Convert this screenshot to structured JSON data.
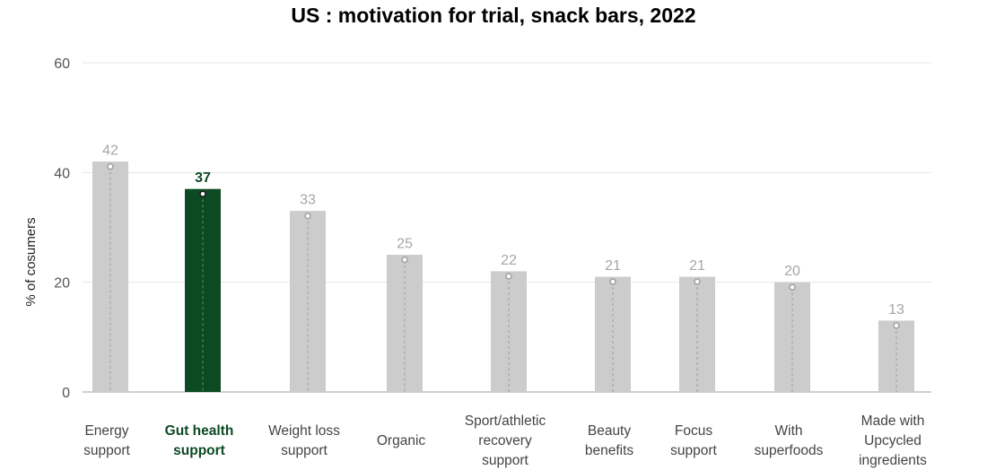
{
  "chart_data": {
    "type": "bar",
    "title": "US : motivation for trial, snack bars, 2022",
    "xlabel": "",
    "ylabel": "% of cosumers",
    "ylim": [
      0,
      60
    ],
    "yticks": [
      0,
      20,
      40,
      60
    ],
    "grid": true,
    "categories": [
      [
        "Energy",
        "support"
      ],
      [
        "Gut health",
        "support"
      ],
      [
        "Weight loss",
        "support"
      ],
      [
        "Organic"
      ],
      [
        "Sport/athletic",
        "recovery",
        "support"
      ],
      [
        "Beauty",
        "benefits"
      ],
      [
        "Focus",
        "support"
      ],
      [
        "With",
        "superfoods"
      ],
      [
        "Made with",
        "Upcycled",
        "ingredients"
      ]
    ],
    "values": [
      42,
      37,
      33,
      25,
      22,
      21,
      21,
      20,
      13
    ],
    "data_labels": [
      "42",
      "37",
      "33",
      "25",
      "22",
      "21",
      "21",
      "20",
      "13"
    ],
    "highlight_index": 1,
    "colors": {
      "bar": "#cccccc",
      "highlight": "#0b4a22",
      "grid": "#e6e6e6",
      "axis": "#bfbfbf",
      "label_muted": "#a6a6a6",
      "marker_line": "#9e9e9e"
    }
  }
}
